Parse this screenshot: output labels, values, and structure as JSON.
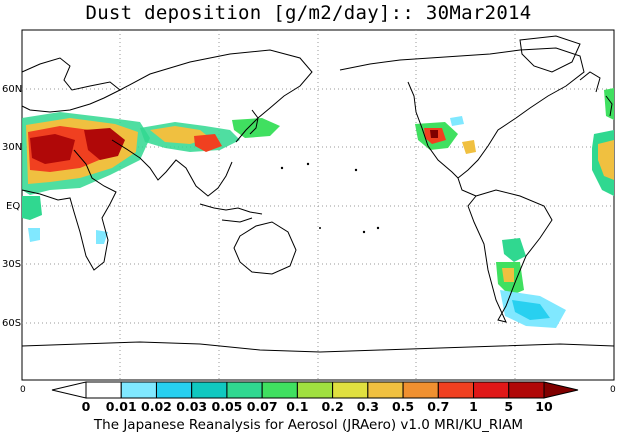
{
  "title": "Dust deposition [g/m2/day]:: 30Mar2014",
  "footer": "The Japanese Reanalysis for Aerosol (JRAero) v1.0 MRI/KU_RIAM",
  "map": {
    "lat_labels": [
      "60N",
      "30N",
      "EQ",
      "30S",
      "60S"
    ],
    "edge_labels": {
      "left": "0",
      "right": "0"
    }
  },
  "colorbar": {
    "labels": [
      "0",
      "0.01",
      "0.02",
      "0.03",
      "0.05",
      "0.07",
      "0.1",
      "0.2",
      "0.3",
      "0.5",
      "0.7",
      "1",
      "5",
      "10"
    ],
    "colors": [
      "#ffffff",
      "#ffffff",
      "#80e8ff",
      "#28d0f0",
      "#10c8c0",
      "#30d890",
      "#40e060",
      "#a0e040",
      "#e0e040",
      "#f0c040",
      "#f09030",
      "#f04020",
      "#e01818",
      "#b00808",
      "#800000"
    ]
  },
  "colors": {
    "land_outline": "#000000",
    "grid": "#9a9a9a"
  }
}
